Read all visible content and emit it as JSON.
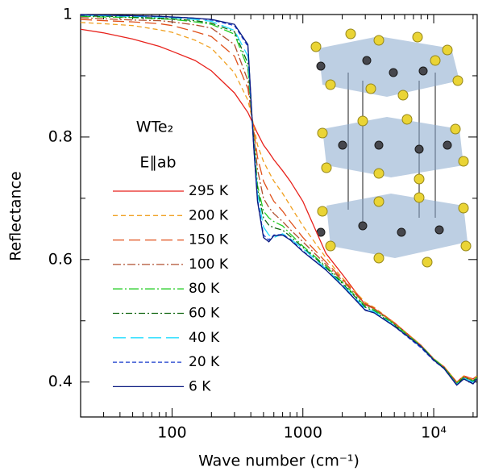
{
  "chart_data": {
    "type": "line",
    "x_label": "Wave number (cm⁻¹)",
    "y_label": "Reflectance",
    "annotations": [
      "WTe₂",
      "E∥ab"
    ],
    "xscale": "log",
    "xlim": [
      20,
      21500
    ],
    "ylim": [
      0.343,
      1.0
    ],
    "xticks": [
      100,
      1000,
      {
        "value": 10000,
        "label": "10⁴"
      }
    ],
    "xminorticks": [
      30,
      40,
      50,
      60,
      70,
      80,
      90,
      200,
      300,
      400,
      500,
      600,
      700,
      800,
      900,
      2000,
      3000,
      4000,
      5000,
      6000,
      7000,
      8000,
      9000,
      20000
    ],
    "yticks": [
      0.4,
      0.6,
      0.8,
      1
    ],
    "yminorticks": [
      0.5,
      0.7,
      0.9
    ],
    "x": [
      20,
      30,
      50,
      80,
      100,
      150,
      200,
      300,
      380,
      420,
      450,
      500,
      550,
      600,
      700,
      800,
      1000,
      1500,
      2000,
      3000,
      3500,
      5000,
      8000,
      10000,
      12000,
      15000,
      17000,
      20000,
      21400
    ],
    "series": [
      {
        "name": "295 K",
        "color": "#e8221c",
        "dash": "",
        "values": [
          0.976,
          0.97,
          0.96,
          0.948,
          0.94,
          0.925,
          0.908,
          0.872,
          0.84,
          0.82,
          0.806,
          0.787,
          0.775,
          0.763,
          0.745,
          0.728,
          0.695,
          0.61,
          0.576,
          0.526,
          0.52,
          0.497,
          0.46,
          0.438,
          0.425,
          0.4,
          0.41,
          0.405,
          0.41
        ]
      },
      {
        "name": "200 K",
        "color": "#f0a020",
        "dash": "6 4",
        "values": [
          0.987,
          0.985,
          0.982,
          0.975,
          0.971,
          0.958,
          0.945,
          0.905,
          0.86,
          0.82,
          0.787,
          0.76,
          0.743,
          0.728,
          0.708,
          0.688,
          0.655,
          0.603,
          0.57,
          0.53,
          0.522,
          0.497,
          0.46,
          0.438,
          0.425,
          0.4,
          0.41,
          0.404,
          0.41
        ]
      },
      {
        "name": "150 K",
        "color": "#e0501a",
        "dash": "14 6",
        "values": [
          0.992,
          0.99,
          0.988,
          0.985,
          0.982,
          0.972,
          0.964,
          0.932,
          0.879,
          0.813,
          0.767,
          0.728,
          0.71,
          0.695,
          0.679,
          0.662,
          0.636,
          0.596,
          0.568,
          0.528,
          0.521,
          0.496,
          0.459,
          0.437,
          0.424,
          0.399,
          0.409,
          0.403,
          0.409
        ]
      },
      {
        "name": "100 K",
        "color": "#b05030",
        "dash": "10 3 2 3",
        "values": [
          0.995,
          0.993,
          0.991,
          0.99,
          0.988,
          0.983,
          0.978,
          0.951,
          0.892,
          0.807,
          0.747,
          0.7,
          0.685,
          0.675,
          0.662,
          0.649,
          0.629,
          0.592,
          0.566,
          0.527,
          0.52,
          0.495,
          0.458,
          0.437,
          0.423,
          0.398,
          0.408,
          0.402,
          0.408
        ]
      },
      {
        "name": "80 K",
        "color": "#22cc22",
        "dash": "12 3 2 3",
        "values": [
          0.997,
          0.996,
          0.995,
          0.993,
          0.992,
          0.988,
          0.984,
          0.968,
          0.912,
          0.8,
          0.721,
          0.679,
          0.668,
          0.662,
          0.655,
          0.642,
          0.622,
          0.589,
          0.563,
          0.524,
          0.518,
          0.495,
          0.459,
          0.438,
          0.424,
          0.398,
          0.408,
          0.402,
          0.408
        ]
      },
      {
        "name": "60 K",
        "color": "#116611",
        "dash": "8 3 2 3",
        "values": [
          0.998,
          0.997,
          0.996,
          0.994,
          0.993,
          0.99,
          0.986,
          0.972,
          0.92,
          0.797,
          0.715,
          0.668,
          0.656,
          0.652,
          0.648,
          0.638,
          0.62,
          0.587,
          0.561,
          0.522,
          0.516,
          0.493,
          0.457,
          0.436,
          0.423,
          0.397,
          0.407,
          0.401,
          0.407
        ]
      },
      {
        "name": "40 K",
        "color": "#22ddff",
        "dash": "16 6",
        "values": [
          0.999,
          0.998,
          0.997,
          0.996,
          0.995,
          0.992,
          0.989,
          0.974,
          0.932,
          0.793,
          0.708,
          0.653,
          0.64,
          0.636,
          0.642,
          0.634,
          0.618,
          0.585,
          0.559,
          0.52,
          0.515,
          0.492,
          0.457,
          0.436,
          0.422,
          0.396,
          0.406,
          0.4,
          0.406
        ]
      },
      {
        "name": "20 K",
        "color": "#1a3ccc",
        "dash": "5 3",
        "values": [
          0.999,
          0.999,
          0.998,
          0.997,
          0.996,
          0.994,
          0.991,
          0.982,
          0.948,
          0.788,
          0.698,
          0.64,
          0.632,
          0.64,
          0.641,
          0.633,
          0.614,
          0.583,
          0.557,
          0.518,
          0.513,
          0.491,
          0.456,
          0.435,
          0.422,
          0.395,
          0.405,
          0.398,
          0.405
        ]
      },
      {
        "name": "6 K",
        "color": "#0a1a80",
        "dash": "",
        "values": [
          1.0,
          0.999,
          0.998,
          0.997,
          0.996,
          0.994,
          0.992,
          0.984,
          0.951,
          0.787,
          0.695,
          0.636,
          0.629,
          0.639,
          0.64,
          0.632,
          0.613,
          0.583,
          0.557,
          0.517,
          0.513,
          0.491,
          0.458,
          0.436,
          0.422,
          0.395,
          0.405,
          0.397,
          0.405
        ]
      }
    ]
  }
}
